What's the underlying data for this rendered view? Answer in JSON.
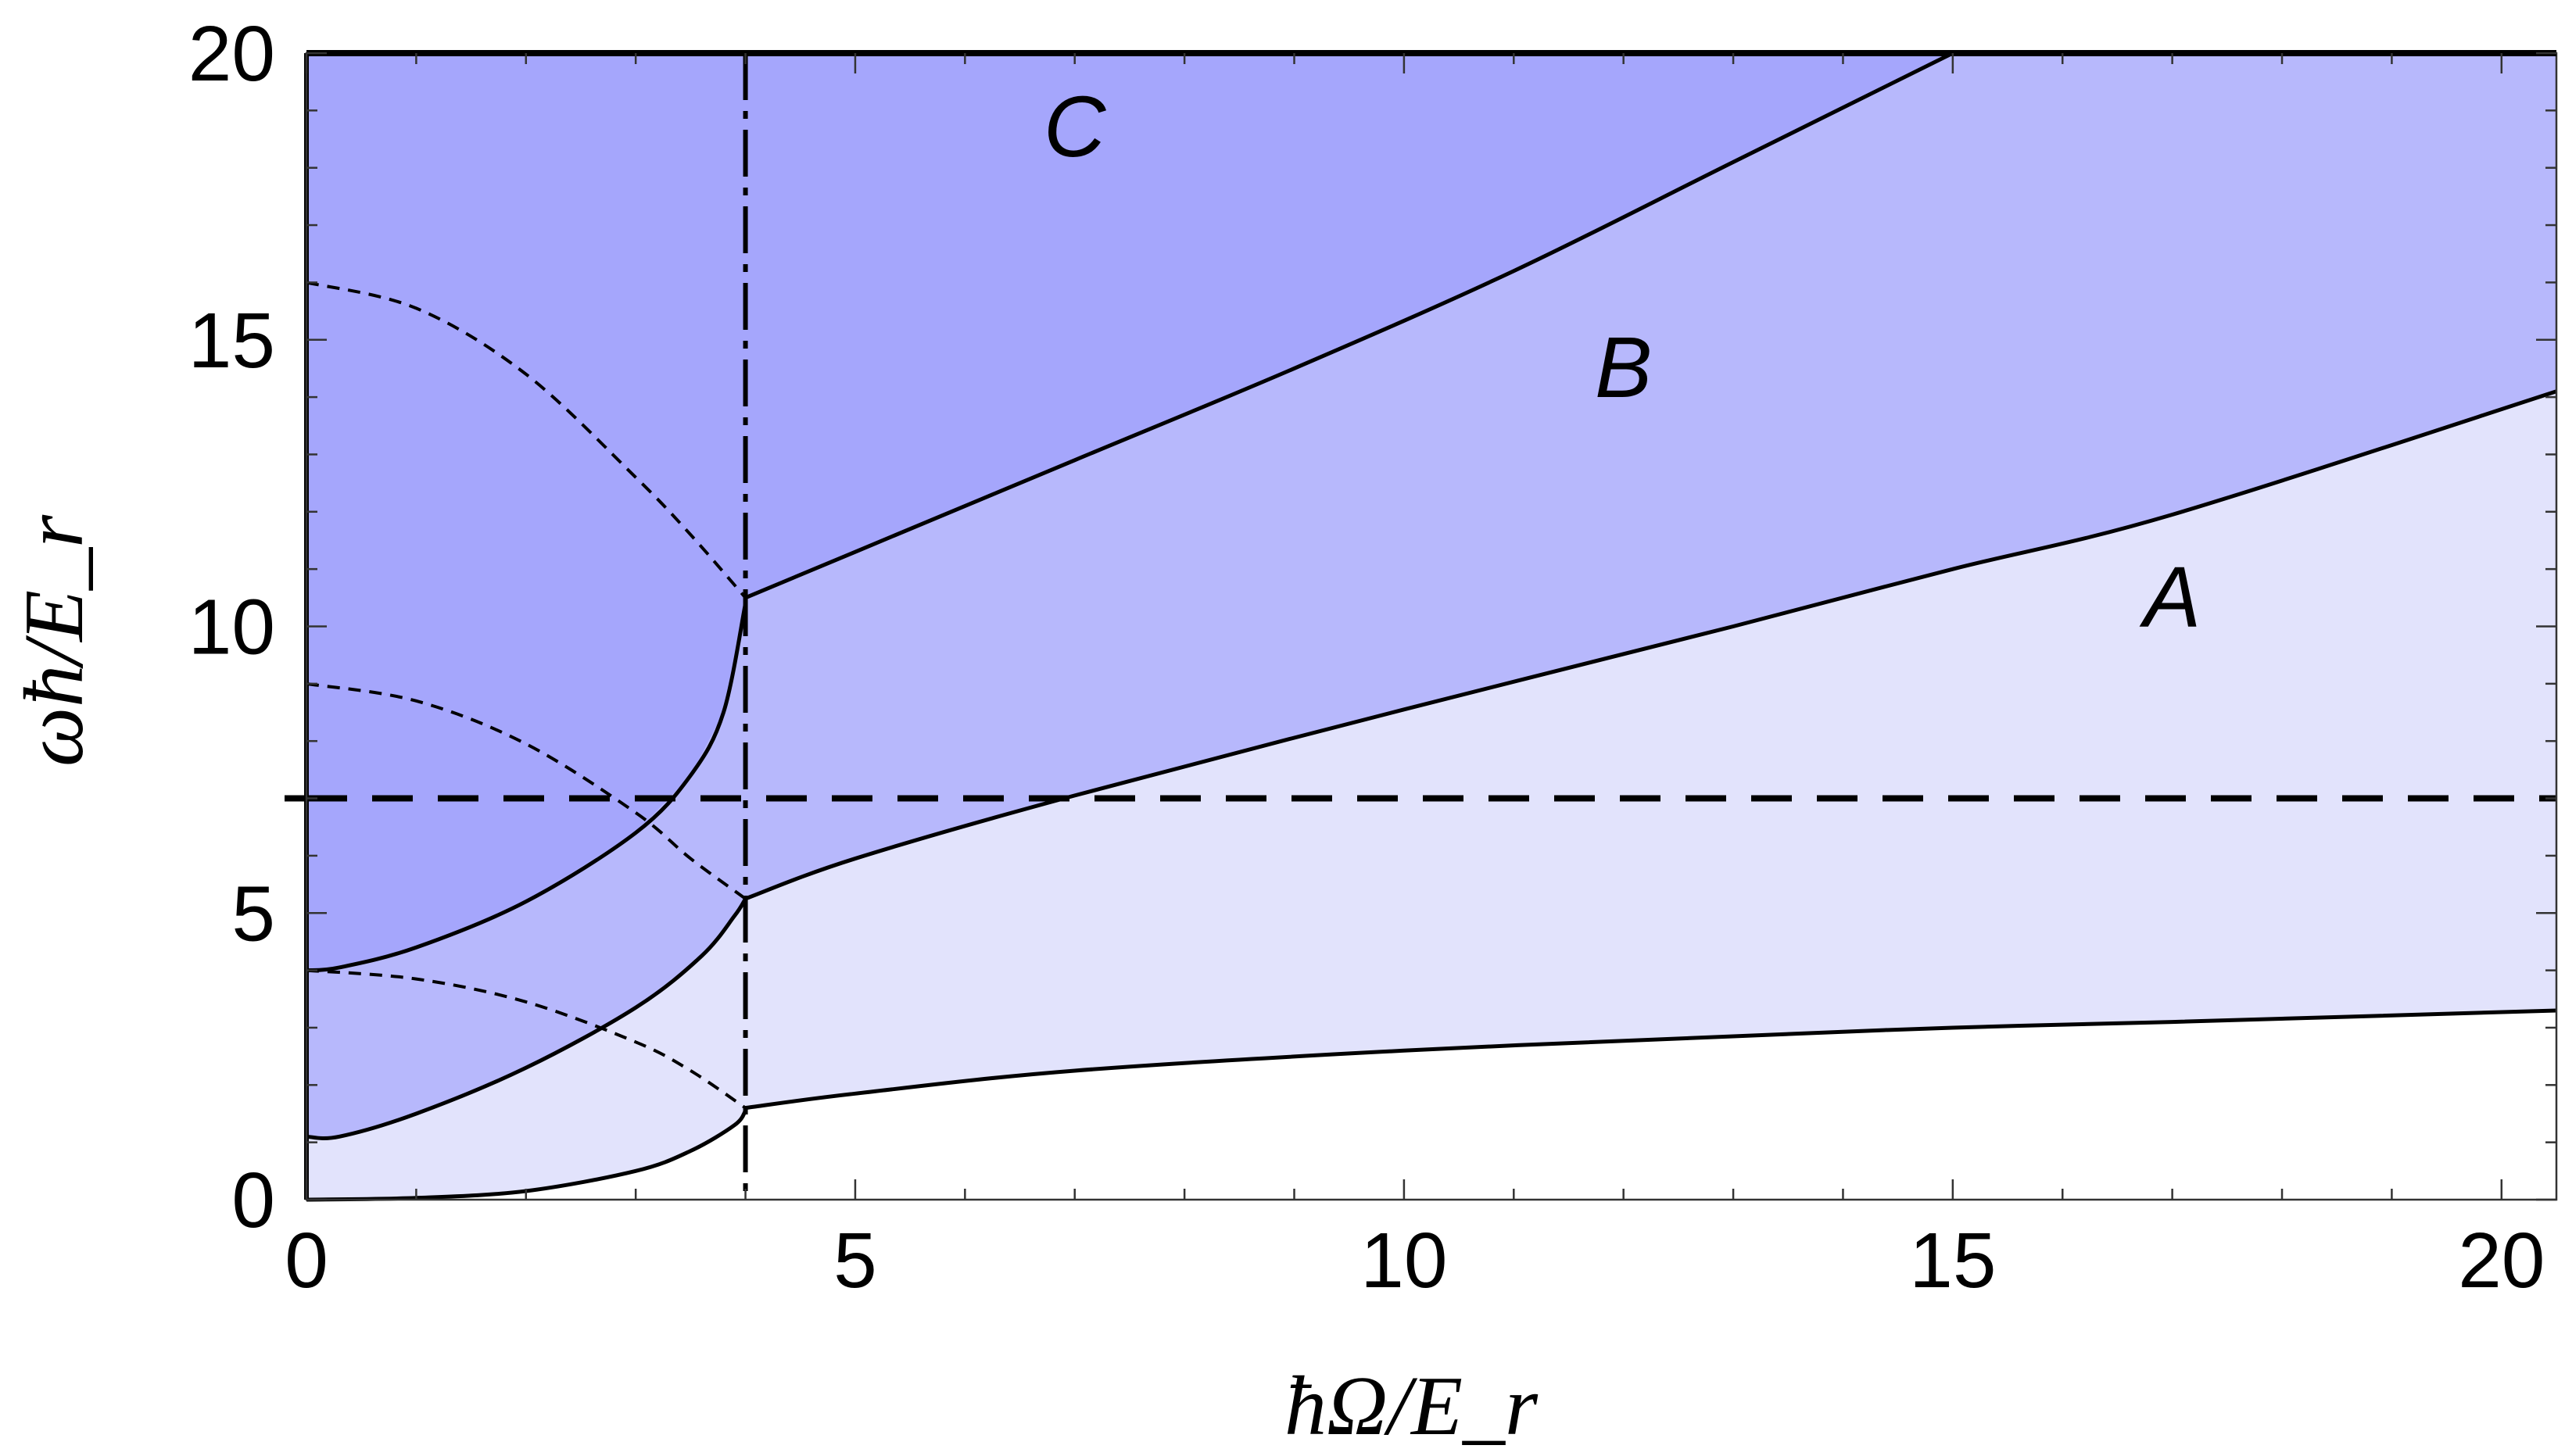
{
  "chart_data": {
    "type": "area",
    "title": "",
    "xlabel": "ħΩ/E_r",
    "ylabel": "ωħ/E_r",
    "xlim": [
      0,
      20.5
    ],
    "ylim": [
      0,
      20
    ],
    "xticks": [
      0,
      5,
      10,
      15,
      20
    ],
    "yticks": [
      0,
      5,
      10,
      15,
      20
    ],
    "xtick_labels": [
      "0",
      "5",
      "10",
      "15",
      "20"
    ],
    "ytick_labels": [
      "0",
      "5",
      "10",
      "15",
      "20"
    ],
    "grid": false,
    "legend": "none",
    "region_labels": [
      {
        "text": "A",
        "x": 17,
        "y": 10
      },
      {
        "text": "B",
        "x": 12,
        "y": 14
      },
      {
        "text": "C",
        "x": 7,
        "y": 18.2
      }
    ],
    "reference_lines": {
      "horizontal_dashed_y": 7,
      "vertical_dashed_x": 4
    },
    "series": [
      {
        "style": "solid",
        "x": [
          0,
          1,
          2,
          3,
          3.5,
          3.9,
          4.0
        ],
        "y": [
          0,
          0.03,
          0.15,
          0.5,
          0.85,
          1.3,
          1.55
        ]
      },
      {
        "style": "solid",
        "x": [
          4.0,
          5,
          7,
          10,
          13,
          15,
          17,
          20.5
        ],
        "y": [
          1.6,
          1.85,
          2.25,
          2.6,
          2.85,
          3.0,
          3.1,
          3.3
        ]
      },
      {
        "style": "solid",
        "x": [
          0,
          0.3,
          1,
          2,
          3,
          3.6,
          3.9,
          4.0
        ],
        "y": [
          1.1,
          1.1,
          1.5,
          2.3,
          3.35,
          4.25,
          4.95,
          5.25
        ]
      },
      {
        "style": "solid",
        "x": [
          4.0,
          5,
          7,
          10,
          13,
          15,
          17,
          20.5
        ],
        "y": [
          5.25,
          5.95,
          7.05,
          8.55,
          10.0,
          11.0,
          11.95,
          14.1
        ]
      },
      {
        "style": "solid",
        "x": [
          0,
          0.3,
          1,
          2,
          3,
          3.5,
          3.8,
          4.0
        ],
        "y": [
          4.0,
          4.05,
          4.4,
          5.2,
          6.4,
          7.4,
          8.5,
          10.4
        ]
      },
      {
        "style": "solid",
        "x": [
          4.0,
          5,
          7,
          9,
          11,
          13,
          15
        ],
        "y": [
          10.5,
          11.3,
          12.9,
          14.5,
          16.2,
          18.1,
          20.0
        ]
      },
      {
        "style": "dashed",
        "x": [
          0,
          1,
          2,
          3,
          3.5,
          4.0
        ],
        "y": [
          4.0,
          3.85,
          3.45,
          2.75,
          2.25,
          1.6
        ]
      },
      {
        "style": "dashed",
        "x": [
          0,
          1,
          2,
          3,
          3.5,
          4.0
        ],
        "y": [
          9.0,
          8.7,
          7.95,
          6.75,
          5.95,
          5.25
        ]
      },
      {
        "style": "dashed",
        "x": [
          0,
          1,
          2,
          3,
          3.5,
          4.0
        ],
        "y": [
          16.0,
          15.55,
          14.4,
          12.6,
          11.6,
          10.5
        ]
      }
    ]
  },
  "colors": {
    "region_a": "#e2e3fc",
    "region_b": "#b7b8fc",
    "region_c": "#a5a6fc",
    "line": "#000000",
    "reference_line_overlap": "#000066"
  }
}
